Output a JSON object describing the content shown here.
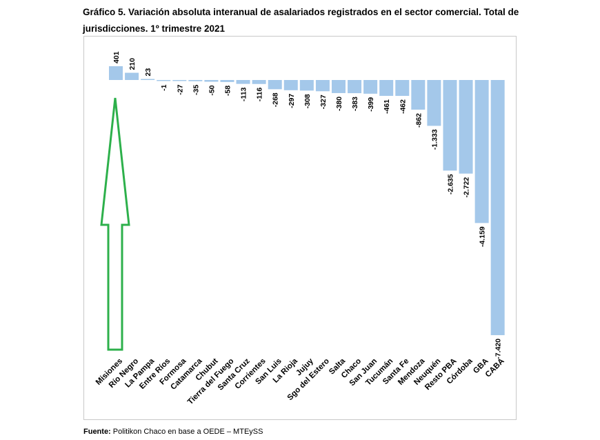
{
  "title": "Gráfico 5. Variación absoluta interanual de asalariados registrados en el sector comercial. Total de jurisdicciones. 1º trimestre 2021",
  "source": {
    "label": "Fuente:",
    "text": " Politikon Chaco en base a OEDE – MTEySS"
  },
  "colors": {
    "bar": "#a4c8ea",
    "annotation_arrow": "#2db04b",
    "frame": "#c8c8c8"
  },
  "chart_data": {
    "type": "bar",
    "title": "Gráfico 5. Variación absoluta interanual de asalariados registrados en el sector comercial. Total de jurisdicciones. 1º trimestre 2021",
    "xlabel": "",
    "ylabel": "",
    "ylim": [
      -7420,
      401
    ],
    "grid": false,
    "legend": "none",
    "categories": [
      "Misiones",
      "Río Negro",
      "La Pampa",
      "Entre Ríos",
      "Formosa",
      "Catamarca",
      "Chubut",
      "Tierra del Fuego",
      "Santa Cruz",
      "Corrientes",
      "San Luis",
      "La Rioja",
      "Jujuy",
      "Sgo del Estero",
      "Salta",
      "Chaco",
      "San Juan",
      "Tucumán",
      "Santa Fe",
      "Mendoza",
      "Neuquén",
      "Resto PBA",
      "Córdoba",
      "GBA",
      "CABA"
    ],
    "values": [
      401,
      210,
      23,
      -1,
      -27,
      -35,
      -50,
      -58,
      -113,
      -116,
      -268,
      -297,
      -308,
      -327,
      -380,
      -383,
      -399,
      -461,
      -462,
      -862,
      -1333,
      -2635,
      -2722,
      -4159,
      -7420
    ],
    "value_labels": [
      "401",
      "210",
      "23",
      "-1",
      "-27",
      "-35",
      "-50",
      "-58",
      "-113",
      "-116",
      "-268",
      "-297",
      "-308",
      "-327",
      "-380",
      "-383",
      "-399",
      "-461",
      "-462",
      "-862",
      "-1.333",
      "-2.635",
      "-2.722",
      "-4.159",
      "-7.420"
    ],
    "annotation": {
      "type": "arrow",
      "target_category": "Misiones",
      "color": "#2db04b"
    }
  }
}
